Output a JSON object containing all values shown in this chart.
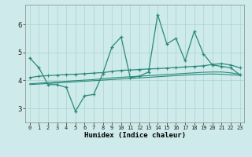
{
  "xlabel": "Humidex (Indice chaleur)",
  "background_color": "#ceeaea",
  "grid_color": "#a8d4d4",
  "line_color": "#2a8a7a",
  "xlim": [
    -0.5,
    23.5
  ],
  "ylim": [
    2.5,
    6.7
  ],
  "yticks": [
    3,
    4,
    5,
    6
  ],
  "xticks": [
    0,
    1,
    2,
    3,
    4,
    5,
    6,
    7,
    8,
    9,
    10,
    11,
    12,
    13,
    14,
    15,
    16,
    17,
    18,
    19,
    20,
    21,
    22,
    23
  ],
  "series1_x": [
    0,
    1,
    2,
    3,
    4,
    5,
    6,
    7,
    8,
    9,
    10,
    11,
    12,
    13,
    14,
    15,
    16,
    17,
    18,
    19,
    20,
    21,
    22,
    23
  ],
  "series1_y": [
    4.8,
    4.45,
    3.85,
    3.85,
    3.75,
    2.9,
    3.45,
    3.5,
    4.25,
    5.2,
    5.55,
    4.1,
    4.15,
    4.3,
    6.35,
    5.3,
    5.5,
    4.7,
    5.75,
    4.95,
    4.55,
    4.5,
    4.45,
    4.2
  ],
  "series2_x": [
    0,
    1,
    2,
    3,
    4,
    5,
    6,
    7,
    8,
    9,
    10,
    11,
    12,
    13,
    14,
    15,
    16,
    17,
    18,
    19,
    20,
    21,
    22,
    23
  ],
  "series2_y": [
    4.1,
    4.15,
    4.17,
    4.19,
    4.21,
    4.22,
    4.24,
    4.26,
    4.28,
    4.32,
    4.36,
    4.37,
    4.39,
    4.41,
    4.42,
    4.44,
    4.46,
    4.48,
    4.5,
    4.52,
    4.57,
    4.6,
    4.55,
    4.45
  ],
  "series3_x": [
    0,
    1,
    2,
    3,
    4,
    5,
    6,
    7,
    8,
    9,
    10,
    11,
    12,
    13,
    14,
    15,
    16,
    17,
    18,
    19,
    20,
    21,
    22,
    23
  ],
  "series3_y": [
    3.88,
    3.9,
    3.93,
    3.95,
    3.97,
    3.99,
    4.01,
    4.03,
    4.06,
    4.09,
    4.11,
    4.13,
    4.15,
    4.17,
    4.19,
    4.21,
    4.23,
    4.25,
    4.27,
    4.29,
    4.3,
    4.3,
    4.27,
    4.22
  ],
  "series4_x": [
    0,
    1,
    2,
    3,
    4,
    5,
    6,
    7,
    8,
    9,
    10,
    11,
    12,
    13,
    14,
    15,
    16,
    17,
    18,
    19,
    20,
    21,
    22,
    23
  ],
  "series4_y": [
    3.85,
    3.87,
    3.89,
    3.91,
    3.93,
    3.95,
    3.97,
    3.99,
    4.01,
    4.03,
    4.05,
    4.07,
    4.09,
    4.11,
    4.13,
    4.15,
    4.17,
    4.19,
    4.21,
    4.22,
    4.23,
    4.22,
    4.2,
    4.18
  ]
}
